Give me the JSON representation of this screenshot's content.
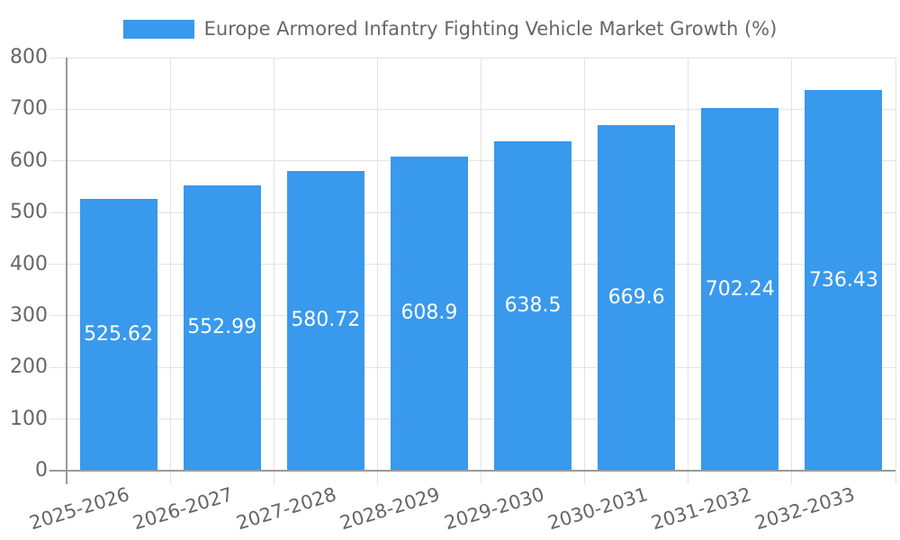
{
  "legend": {
    "label": "Europe Armored Infantry Fighting Vehicle Market Growth (%)"
  },
  "chart_data": {
    "type": "bar",
    "title": "Europe Armored Infantry Fighting Vehicle Market Growth (%)",
    "categories": [
      "2025-2026",
      "2026-2027",
      "2027-2028",
      "2028-2029",
      "2029-2030",
      "2030-2031",
      "2031-2032",
      "2032-2033"
    ],
    "values": [
      525.62,
      552.99,
      580.72,
      608.9,
      638.5,
      669.6,
      702.24,
      736.43
    ],
    "xlabel": "",
    "ylabel": "",
    "ylim": [
      0,
      800
    ],
    "yticks": [
      0,
      100,
      200,
      300,
      400,
      500,
      600,
      700,
      800
    ],
    "grid": true,
    "legend_position": "top",
    "bar_color": "#3999EC",
    "grid_color": "#E3E3E3",
    "axis_color": "#9A9A9A",
    "tick_label_color": "#666666",
    "value_label_color": "#FFFFFF"
  }
}
